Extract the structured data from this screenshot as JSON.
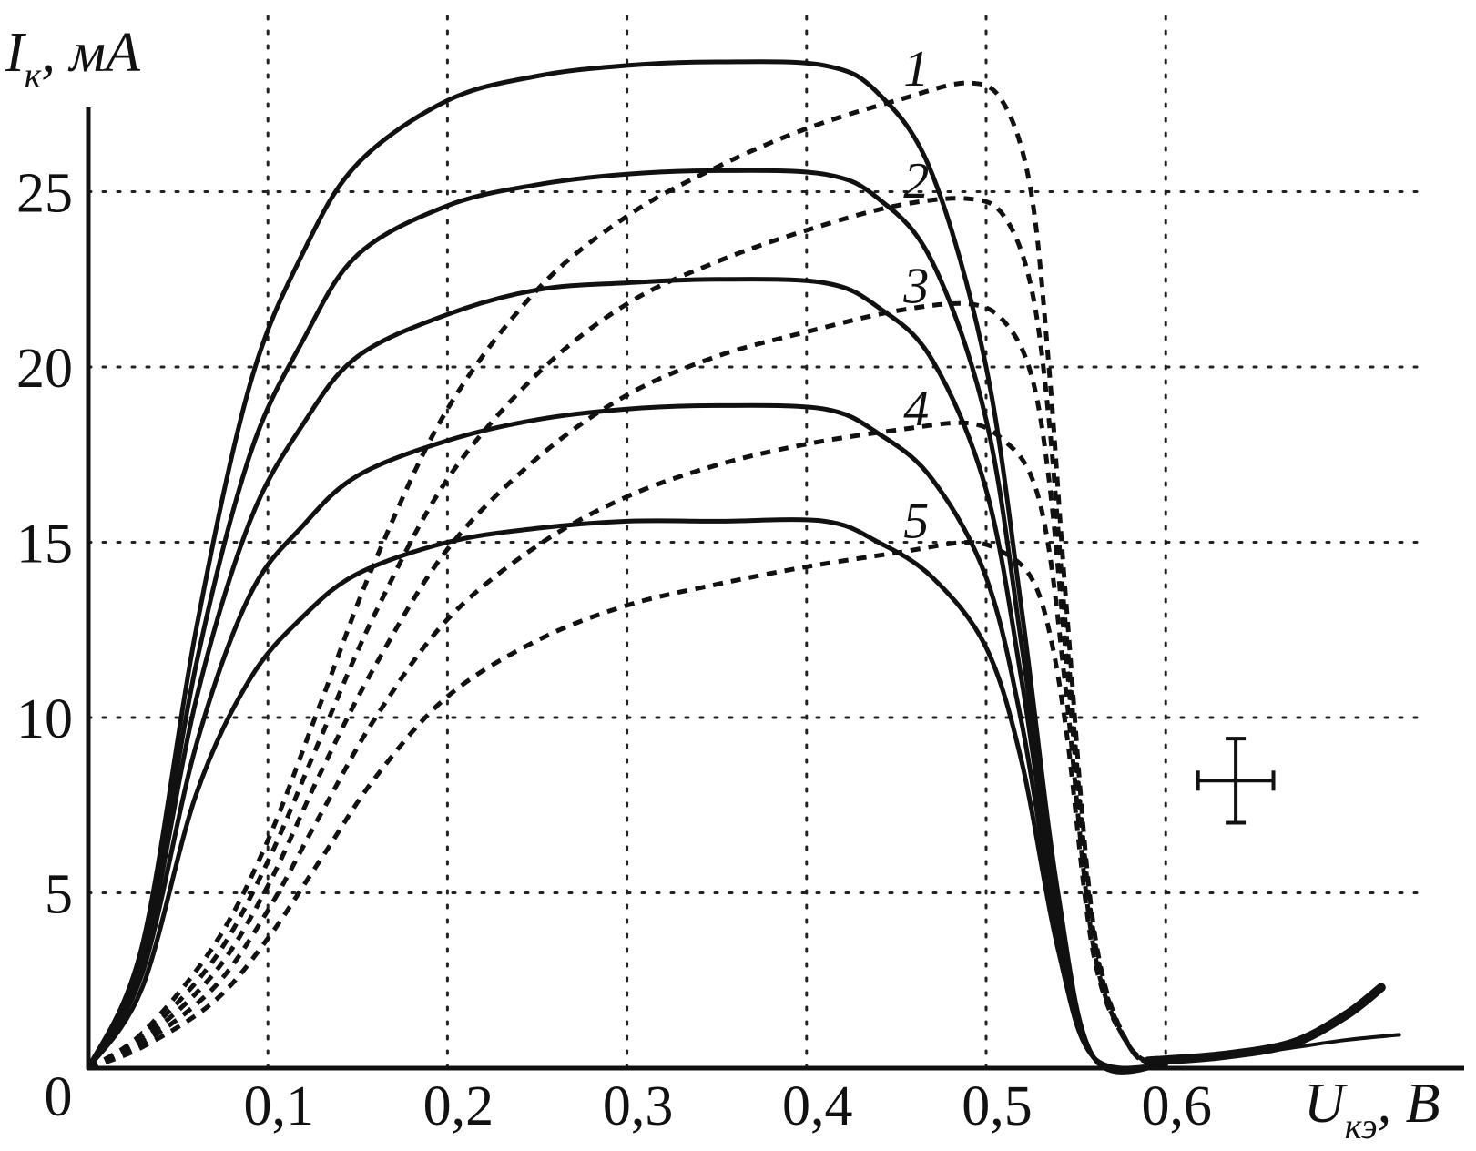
{
  "chart_data": {
    "type": "line",
    "title": "",
    "xlabel": {
      "main": "U",
      "sub": "кэ",
      "unit": ", В"
    },
    "ylabel": {
      "main": "I",
      "sub": "к",
      "unit": ", мА"
    },
    "xlim": [
      0,
      0.75
    ],
    "ylim": [
      0,
      27
    ],
    "origin_label": "0",
    "x_ticks": [
      0.1,
      0.2,
      0.3,
      0.4,
      0.5,
      0.6
    ],
    "x_tick_labels": [
      "0,1",
      "0,2",
      "0,3",
      "0,4",
      "0,5",
      "0,6"
    ],
    "y_ticks": [
      5,
      10,
      15,
      20,
      25
    ],
    "y_tick_labels": [
      "5",
      "10",
      "15",
      "20",
      "25"
    ],
    "grid": true,
    "series": [
      {
        "name": "1",
        "style": "solid",
        "x": [
          0,
          0.03,
          0.06,
          0.09,
          0.12,
          0.15,
          0.2,
          0.25,
          0.3,
          0.35,
          0.41,
          0.44,
          0.47,
          0.5,
          0.52,
          0.54,
          0.56,
          0.6
        ],
        "y": [
          0,
          3.5,
          12.5,
          19.5,
          23.3,
          25.8,
          27.6,
          28.3,
          28.6,
          28.7,
          28.6,
          27.8,
          25.5,
          20,
          13,
          5,
          0.3,
          0.1
        ]
      },
      {
        "name": "2",
        "style": "solid",
        "x": [
          0,
          0.03,
          0.06,
          0.09,
          0.12,
          0.15,
          0.2,
          0.25,
          0.3,
          0.35,
          0.41,
          0.44,
          0.47,
          0.5,
          0.52,
          0.54,
          0.56,
          0.6
        ],
        "y": [
          0,
          3.2,
          11.5,
          17.5,
          20.8,
          23.2,
          24.6,
          25.2,
          25.5,
          25.6,
          25.5,
          24.8,
          23,
          18.5,
          12,
          4.5,
          0.3,
          0.1
        ]
      },
      {
        "name": "3",
        "style": "solid",
        "x": [
          0,
          0.03,
          0.06,
          0.09,
          0.12,
          0.15,
          0.2,
          0.25,
          0.3,
          0.35,
          0.41,
          0.44,
          0.47,
          0.5,
          0.52,
          0.54,
          0.56,
          0.6
        ],
        "y": [
          0,
          3,
          10.5,
          15.6,
          18.4,
          20.3,
          21.5,
          22.2,
          22.4,
          22.5,
          22.4,
          21.7,
          20.2,
          16.5,
          11,
          4.2,
          0.3,
          0.1
        ]
      },
      {
        "name": "4",
        "style": "solid",
        "x": [
          0,
          0.03,
          0.06,
          0.09,
          0.12,
          0.15,
          0.2,
          0.25,
          0.3,
          0.35,
          0.41,
          0.44,
          0.47,
          0.5,
          0.52,
          0.54,
          0.56,
          0.6
        ],
        "y": [
          0,
          2.7,
          9.2,
          13.5,
          15.5,
          16.9,
          17.9,
          18.5,
          18.8,
          18.9,
          18.8,
          18.1,
          16.8,
          14,
          9.8,
          3.8,
          0.3,
          0.1
        ]
      },
      {
        "name": "5",
        "style": "solid",
        "x": [
          0,
          0.03,
          0.06,
          0.09,
          0.12,
          0.15,
          0.2,
          0.25,
          0.3,
          0.35,
          0.41,
          0.44,
          0.47,
          0.5,
          0.52,
          0.54,
          0.56,
          0.6
        ],
        "y": [
          0,
          2.3,
          7.8,
          11.1,
          12.9,
          14.1,
          15,
          15.4,
          15.6,
          15.6,
          15.6,
          15,
          14,
          12,
          8.7,
          3.4,
          0.3,
          0.1
        ]
      },
      {
        "name": "1",
        "style": "dashed",
        "x": [
          0,
          0.03,
          0.07,
          0.1,
          0.13,
          0.16,
          0.2,
          0.25,
          0.3,
          0.35,
          0.4,
          0.45,
          0.49,
          0.51,
          0.525,
          0.535,
          0.545,
          0.56,
          0.58,
          0.6
        ],
        "y": [
          0,
          1,
          3.5,
          6.5,
          10.5,
          14.5,
          18.8,
          22.2,
          24.3,
          25.7,
          26.8,
          27.6,
          28.1,
          27.5,
          25,
          20,
          13,
          4,
          0.6,
          0.1
        ]
      },
      {
        "name": "2",
        "style": "dashed",
        "x": [
          0,
          0.03,
          0.07,
          0.1,
          0.13,
          0.16,
          0.2,
          0.25,
          0.3,
          0.35,
          0.4,
          0.45,
          0.49,
          0.51,
          0.525,
          0.535,
          0.545,
          0.56,
          0.58,
          0.6
        ],
        "y": [
          0,
          0.9,
          3.1,
          5.9,
          9.5,
          13,
          16.8,
          19.8,
          21.8,
          23,
          23.9,
          24.6,
          24.8,
          24.3,
          22.3,
          18.5,
          12.2,
          3.8,
          0.6,
          0.1
        ]
      },
      {
        "name": "3",
        "style": "dashed",
        "x": [
          0,
          0.03,
          0.07,
          0.1,
          0.13,
          0.16,
          0.2,
          0.25,
          0.3,
          0.35,
          0.4,
          0.45,
          0.49,
          0.51,
          0.525,
          0.535,
          0.545,
          0.56,
          0.58,
          0.6
        ],
        "y": [
          0,
          0.8,
          2.7,
          5.2,
          8.5,
          11.5,
          14.8,
          17.4,
          19.2,
          20.3,
          21,
          21.6,
          21.8,
          21.3,
          19.8,
          16.8,
          11.5,
          3.6,
          0.6,
          0.1
        ]
      },
      {
        "name": "4",
        "style": "dashed",
        "x": [
          0,
          0.03,
          0.07,
          0.1,
          0.13,
          0.16,
          0.2,
          0.25,
          0.3,
          0.35,
          0.4,
          0.45,
          0.49,
          0.51,
          0.525,
          0.535,
          0.545,
          0.56,
          0.58,
          0.6
        ],
        "y": [
          0,
          0.7,
          2.3,
          4.5,
          7.3,
          10,
          12.8,
          14.9,
          16.3,
          17.2,
          17.8,
          18.2,
          18.4,
          17.9,
          16.9,
          14.8,
          10.5,
          3.4,
          0.6,
          0.1
        ]
      },
      {
        "name": "5",
        "style": "dashed",
        "x": [
          0,
          0.03,
          0.07,
          0.1,
          0.13,
          0.16,
          0.2,
          0.25,
          0.3,
          0.35,
          0.4,
          0.45,
          0.49,
          0.51,
          0.525,
          0.535,
          0.545,
          0.56,
          0.58,
          0.6
        ],
        "y": [
          0,
          0.6,
          1.9,
          3.7,
          6,
          8.3,
          10.6,
          12.2,
          13.2,
          13.8,
          14.3,
          14.7,
          15,
          14.7,
          14,
          12.5,
          9.5,
          3.2,
          0.6,
          0.1
        ]
      }
    ],
    "tails": [
      {
        "x": [
          0.59,
          0.63,
          0.67,
          0.7,
          0.72
        ],
        "y": [
          0.2,
          0.35,
          0.7,
          1.5,
          2.3
        ],
        "weight": "bold"
      },
      {
        "x": [
          0.59,
          0.65,
          0.7,
          0.73
        ],
        "y": [
          0.2,
          0.45,
          0.8,
          0.95
        ],
        "weight": "thin"
      }
    ],
    "error_bar": {
      "x": 0.639,
      "y": 8.2,
      "x_err": 0.021,
      "y_err": 1.2
    },
    "curve_labels": [
      {
        "text": "1",
        "x": 0.455,
        "y": 28.5
      },
      {
        "text": "2",
        "x": 0.455,
        "y": 25.3
      },
      {
        "text": "3",
        "x": 0.455,
        "y": 22.3
      },
      {
        "text": "4",
        "x": 0.455,
        "y": 18.8
      },
      {
        "text": "5",
        "x": 0.455,
        "y": 15.6
      }
    ]
  }
}
